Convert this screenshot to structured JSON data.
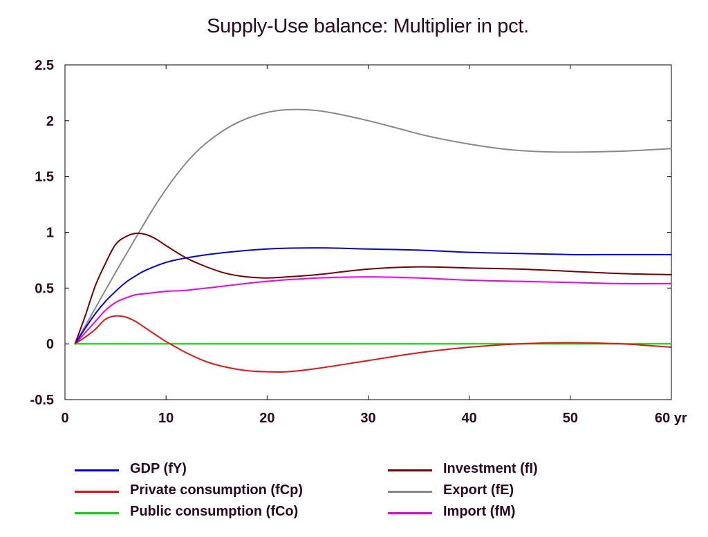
{
  "chart_data": {
    "type": "line",
    "title": "Supply-Use balance: Multiplier in pct.",
    "xlabel": "",
    "ylabel": "",
    "x_unit_label": "yr",
    "xlim": [
      0,
      60
    ],
    "ylim": [
      -0.5,
      2.5
    ],
    "x_ticks": [
      0,
      10,
      20,
      30,
      40,
      50,
      60
    ],
    "x_tick_labels": [
      "0",
      "10",
      "20",
      "30",
      "40",
      "50",
      "60 yr"
    ],
    "y_ticks": [
      -0.5,
      0,
      0.5,
      1,
      1.5,
      2,
      2.5
    ],
    "y_tick_labels": [
      "-0.5",
      "0",
      "0.5",
      "1",
      "1.5",
      "2",
      "2.5"
    ],
    "grid": false,
    "legend_position": "bottom",
    "series": [
      {
        "name": "GDP (fY)",
        "color": "#0000ee",
        "x": [
          1,
          2,
          3,
          4,
          5,
          6,
          7,
          8,
          10,
          12,
          15,
          20,
          25,
          30,
          35,
          40,
          45,
          50,
          55,
          60
        ],
        "y": [
          0,
          0.14,
          0.27,
          0.38,
          0.47,
          0.55,
          0.61,
          0.66,
          0.73,
          0.77,
          0.81,
          0.85,
          0.86,
          0.85,
          0.84,
          0.82,
          0.81,
          0.8,
          0.8,
          0.8
        ]
      },
      {
        "name": "Private consumption (fCp)",
        "color": "#ee1111",
        "x": [
          1,
          2,
          3,
          4,
          5,
          6,
          7,
          8,
          9,
          10,
          11,
          12,
          14,
          16,
          18,
          20,
          22,
          25,
          30,
          35,
          40,
          45,
          50,
          55,
          60
        ],
        "y": [
          0,
          0.06,
          0.13,
          0.22,
          0.25,
          0.24,
          0.2,
          0.14,
          0.08,
          0.02,
          -0.03,
          -0.08,
          -0.16,
          -0.21,
          -0.24,
          -0.25,
          -0.25,
          -0.22,
          -0.15,
          -0.08,
          -0.03,
          0,
          0.01,
          0,
          -0.03
        ]
      },
      {
        "name": "Public consumption (fCo)",
        "color": "#00dd00",
        "x": [
          1,
          10,
          20,
          30,
          40,
          50,
          60
        ],
        "y": [
          0,
          0,
          0,
          0,
          0,
          0,
          0
        ]
      },
      {
        "name": "Investment (fI)",
        "color": "#7a0000",
        "x": [
          1,
          2,
          3,
          4,
          5,
          6,
          7,
          8,
          9,
          10,
          12,
          14,
          16,
          18,
          20,
          22,
          25,
          30,
          35,
          40,
          45,
          50,
          55,
          60
        ],
        "y": [
          0,
          0.25,
          0.52,
          0.72,
          0.89,
          0.96,
          0.99,
          0.98,
          0.94,
          0.88,
          0.77,
          0.69,
          0.63,
          0.6,
          0.59,
          0.6,
          0.62,
          0.67,
          0.69,
          0.68,
          0.67,
          0.65,
          0.63,
          0.62
        ]
      },
      {
        "name": "Export (fE)",
        "color": "#888888",
        "x": [
          1,
          3,
          5,
          7,
          9,
          11,
          13,
          15,
          17,
          19,
          21,
          23,
          25,
          27,
          30,
          33,
          36,
          40,
          44,
          48,
          52,
          56,
          60
        ],
        "y": [
          0,
          0.32,
          0.64,
          0.95,
          1.25,
          1.51,
          1.72,
          1.87,
          1.98,
          2.05,
          2.09,
          2.1,
          2.09,
          2.06,
          2.0,
          1.93,
          1.86,
          1.79,
          1.74,
          1.72,
          1.72,
          1.73,
          1.75
        ]
      },
      {
        "name": "Import (fM)",
        "color": "#ee00ee",
        "x": [
          1,
          2,
          3,
          4,
          5,
          6,
          7,
          8,
          10,
          12,
          15,
          20,
          25,
          30,
          35,
          40,
          45,
          50,
          55,
          60
        ],
        "y": [
          0,
          0.1,
          0.2,
          0.3,
          0.37,
          0.41,
          0.44,
          0.45,
          0.47,
          0.48,
          0.51,
          0.56,
          0.59,
          0.6,
          0.59,
          0.57,
          0.56,
          0.55,
          0.54,
          0.54
        ]
      }
    ]
  }
}
